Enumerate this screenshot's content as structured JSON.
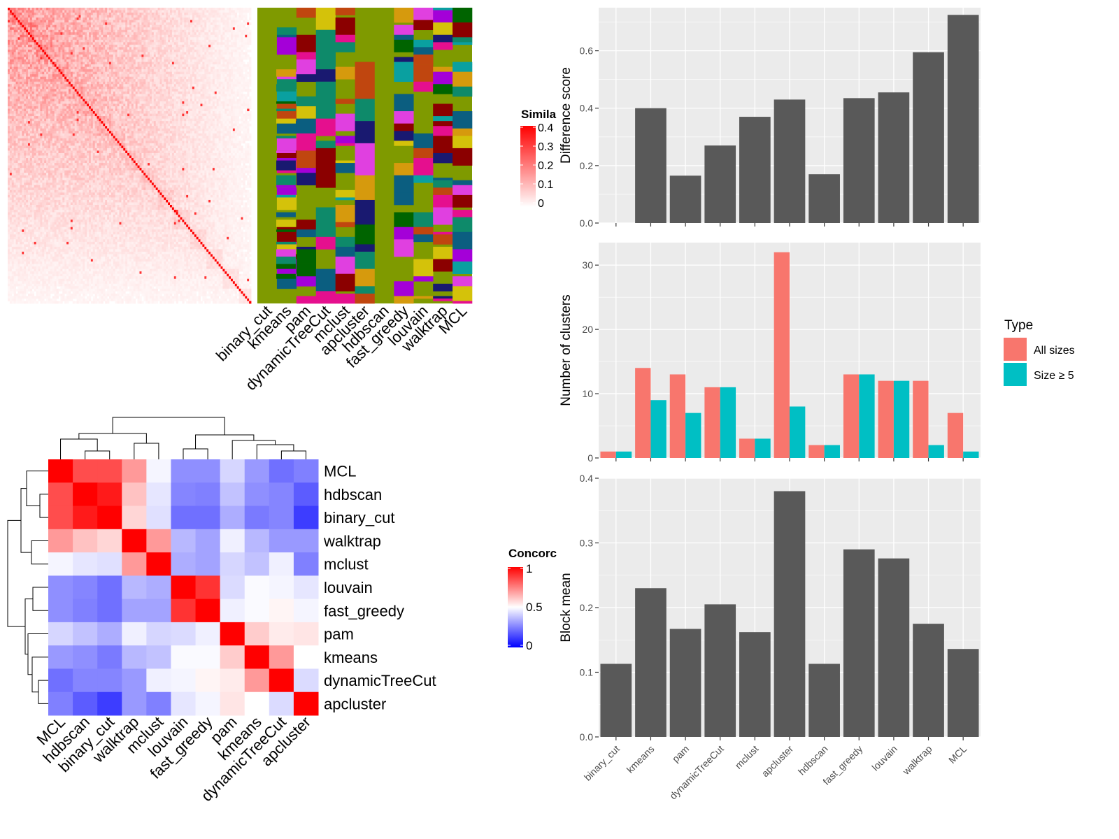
{
  "colors": {
    "panel_bg": "#EBEBEB",
    "grid": "#FFFFFF",
    "bar": "#595959",
    "all_sizes": "#F8766D",
    "size_ge5": "#00BFC4",
    "heat_high": "#FF0000",
    "heat_mid": "#FFFFFF",
    "heat_low": "#0000FF"
  },
  "similarity_heatmap": {
    "legend_title": "Simila",
    "legend_ticks": [
      "0.4",
      "0.3",
      "0.2",
      "0.1",
      "0"
    ],
    "n_items": 120,
    "bg_olive": "#7F9A00"
  },
  "class_annotation": {
    "methods": [
      "binary_cut",
      "kmeans",
      "pam",
      "dynamicTreeCut",
      "mclust",
      "apcluster",
      "hdbscan",
      "fast_greedy",
      "louvain",
      "walktrap",
      "MCL"
    ],
    "palette": [
      "#0E8A6A",
      "#D69A0D",
      "#E50F8E",
      "#A400D8",
      "#006400",
      "#0B5E80",
      "#C0460F",
      "#8B0000",
      "#D4C20A",
      "#191970",
      "#0AA0A0",
      "#E040E0",
      "#7F9A00"
    ]
  },
  "concordance_heatmap": {
    "legend_title": "Concorc",
    "legend_ticks": [
      "1",
      "0.5",
      "0"
    ],
    "row_labels": [
      "MCL",
      "hdbscan",
      "binary_cut",
      "walktrap",
      "mclust",
      "louvain",
      "fast_greedy",
      "pam",
      "kmeans",
      "dynamicTreeCut",
      "apcluster"
    ],
    "col_labels": [
      "MCL",
      "hdbscan",
      "binary_cut",
      "walktrap",
      "mclust",
      "louvain",
      "fast_greedy",
      "pam",
      "kmeans",
      "dynamicTreeCut",
      "apcluster"
    ]
  },
  "chart_data": [
    {
      "type": "heatmap",
      "title": "",
      "legend_title": "Concorc",
      "rows": [
        "MCL",
        "hdbscan",
        "binary_cut",
        "walktrap",
        "mclust",
        "louvain",
        "fast_greedy",
        "pam",
        "kmeans",
        "dynamicTreeCut",
        "apcluster"
      ],
      "cols": [
        "MCL",
        "hdbscan",
        "binary_cut",
        "walktrap",
        "mclust",
        "louvain",
        "fast_greedy",
        "pam",
        "kmeans",
        "dynamicTreeCut",
        "apcluster"
      ],
      "values": [
        [
          1.0,
          0.85,
          0.85,
          0.7,
          0.48,
          0.28,
          0.28,
          0.42,
          0.3,
          0.22,
          0.25
        ],
        [
          0.85,
          1.0,
          0.95,
          0.62,
          0.45,
          0.26,
          0.25,
          0.38,
          0.28,
          0.26,
          0.18
        ],
        [
          0.85,
          0.95,
          1.0,
          0.58,
          0.44,
          0.22,
          0.22,
          0.34,
          0.24,
          0.26,
          0.12
        ],
        [
          0.7,
          0.62,
          0.58,
          1.0,
          0.7,
          0.36,
          0.32,
          0.47,
          0.36,
          0.3,
          0.3
        ],
        [
          0.48,
          0.45,
          0.44,
          0.7,
          1.0,
          0.34,
          0.32,
          0.42,
          0.38,
          0.47,
          0.25
        ],
        [
          0.28,
          0.26,
          0.22,
          0.36,
          0.34,
          1.0,
          0.9,
          0.43,
          0.49,
          0.48,
          0.45
        ],
        [
          0.28,
          0.25,
          0.22,
          0.32,
          0.32,
          0.9,
          1.0,
          0.47,
          0.49,
          0.52,
          0.48
        ],
        [
          0.42,
          0.38,
          0.34,
          0.47,
          0.42,
          0.43,
          0.47,
          1.0,
          0.6,
          0.54,
          0.55
        ],
        [
          0.3,
          0.28,
          0.24,
          0.36,
          0.38,
          0.49,
          0.49,
          0.6,
          1.0,
          0.7,
          0.5
        ],
        [
          0.22,
          0.26,
          0.26,
          0.3,
          0.47,
          0.48,
          0.52,
          0.54,
          0.7,
          1.0,
          0.43
        ],
        [
          0.25,
          0.18,
          0.12,
          0.3,
          0.25,
          0.45,
          0.48,
          0.55,
          0.5,
          0.43,
          1.0
        ]
      ],
      "color_range": [
        0,
        1
      ]
    },
    {
      "type": "bar",
      "categories": [
        "binary_cut",
        "kmeans",
        "pam",
        "dynamicTreeCut",
        "mclust",
        "apcluster",
        "hdbscan",
        "fast_greedy",
        "louvain",
        "walktrap",
        "MCL"
      ],
      "values": [
        0,
        0.4,
        0.165,
        0.27,
        0.37,
        0.43,
        0.17,
        0.435,
        0.455,
        0.595,
        0.725
      ],
      "xlabel": "",
      "ylabel": "Difference score",
      "ylim": [
        0,
        0.75
      ],
      "yticks": [
        "0.0",
        "0.2",
        "0.4",
        "0.6"
      ],
      "grid": true
    },
    {
      "type": "bar",
      "categories": [
        "binary_cut",
        "kmeans",
        "pam",
        "dynamicTreeCut",
        "mclust",
        "apcluster",
        "hdbscan",
        "fast_greedy",
        "louvain",
        "walktrap",
        "MCL"
      ],
      "series": [
        {
          "name": "All sizes",
          "values": [
            1,
            14,
            13,
            11,
            3,
            32,
            2,
            13,
            12,
            12,
            7
          ]
        },
        {
          "name": "Size ≥ 5",
          "values": [
            1,
            9,
            7,
            11,
            3,
            8,
            2,
            13,
            12,
            2,
            1
          ]
        }
      ],
      "xlabel": "",
      "ylabel": "Number of clusters",
      "ylim": [
        0,
        33.5
      ],
      "yticks": [
        "0",
        "10",
        "20",
        "30"
      ],
      "legend_title": "Type",
      "legend_position": "right",
      "grid": true
    },
    {
      "type": "bar",
      "categories": [
        "binary_cut",
        "kmeans",
        "pam",
        "dynamicTreeCut",
        "mclust",
        "apcluster",
        "hdbscan",
        "fast_greedy",
        "louvain",
        "walktrap",
        "MCL"
      ],
      "values": [
        0.113,
        0.23,
        0.167,
        0.205,
        0.162,
        0.38,
        0.113,
        0.29,
        0.276,
        0.175,
        0.136
      ],
      "xlabel": "",
      "ylabel": "Block mean",
      "ylim": [
        0,
        0.4
      ],
      "yticks": [
        "0.0",
        "0.1",
        "0.2",
        "0.3",
        "0.4"
      ],
      "grid": true
    }
  ]
}
